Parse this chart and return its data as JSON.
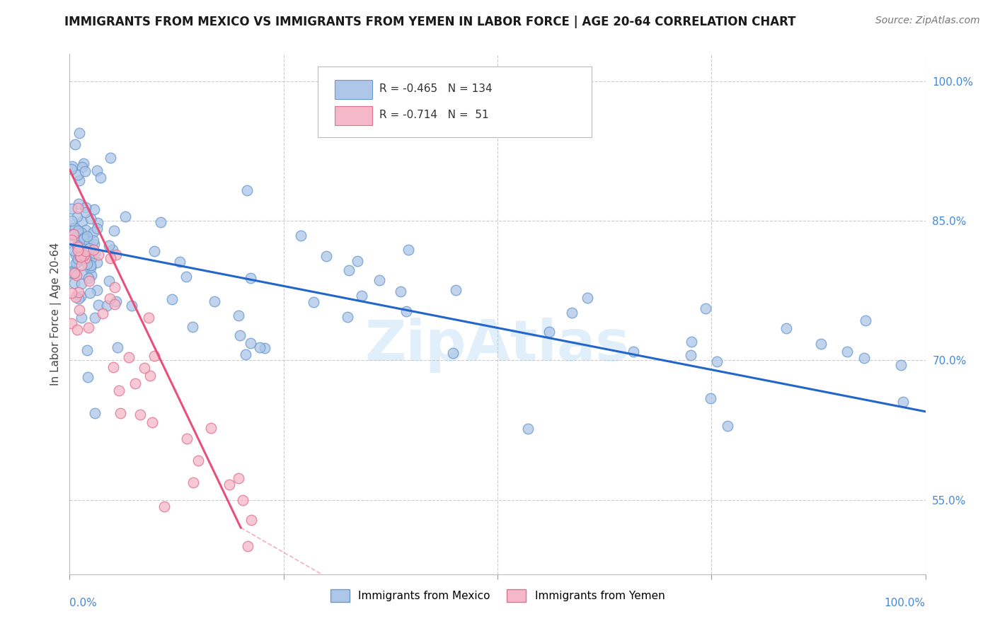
{
  "title": "IMMIGRANTS FROM MEXICO VS IMMIGRANTS FROM YEMEN IN LABOR FORCE | AGE 20-64 CORRELATION CHART",
  "source_text": "Source: ZipAtlas.com",
  "ylabel": "In Labor Force | Age 20-64",
  "xlim": [
    0,
    100
  ],
  "ylim": [
    47,
    103
  ],
  "mexico_color": "#aec6e8",
  "mexico_edge": "#6699cc",
  "yemen_color": "#f4b8c8",
  "yemen_edge": "#e07090",
  "trend_mexico_color": "#2266cc",
  "trend_yemen_color": "#e8507a",
  "R_mexico": -0.465,
  "N_mexico": 134,
  "R_yemen": -0.714,
  "N_yemen": 51,
  "legend_label_mexico": "Immigrants from Mexico",
  "legend_label_yemen": "Immigrants from Yemen",
  "watermark": "ZipAtlas",
  "background_color": "#ffffff",
  "grid_color": "#cccccc",
  "right_axis_color": "#4488dd",
  "title_fontsize": 12,
  "source_fontsize": 10,
  "watermark_color": "#99ccee",
  "watermark_alpha": 0.3,
  "mexico_trend_start_y": 82.5,
  "mexico_trend_end_y": 64.5,
  "yemen_trend_start_y": 90.5,
  "yemen_trend_end_x_solid": 20,
  "yemen_trend_end_y_solid": 52.0,
  "yemen_trend_end_x_dashed": 37,
  "yemen_trend_end_y_dashed": 43.0
}
